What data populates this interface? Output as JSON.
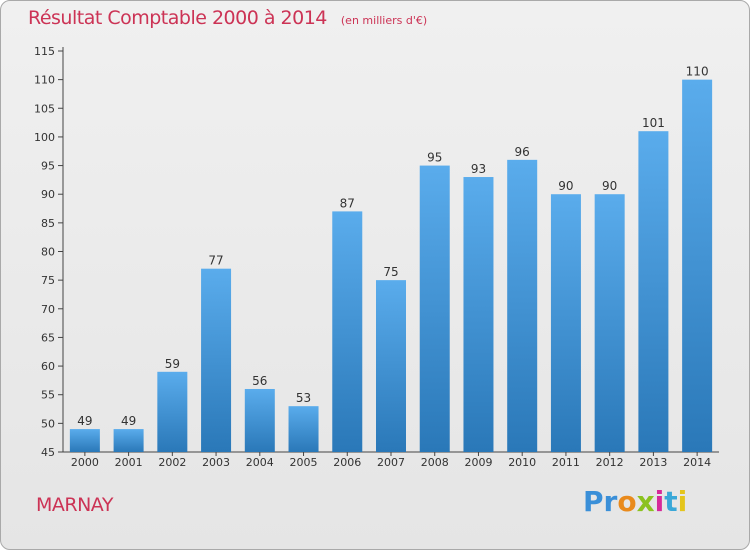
{
  "chart_data": {
    "type": "bar",
    "title": "Résultat Comptable 2000 à 2014",
    "subtitle": "(en milliers d'€)",
    "categories": [
      "2000",
      "2001",
      "2002",
      "2003",
      "2004",
      "2005",
      "2006",
      "2007",
      "2008",
      "2009",
      "2010",
      "2011",
      "2012",
      "2013",
      "2014"
    ],
    "values": [
      49,
      49,
      59,
      77,
      56,
      53,
      87,
      75,
      95,
      93,
      96,
      90,
      90,
      101,
      110
    ],
    "ylim": [
      45,
      115
    ],
    "yticks": [
      45,
      50,
      55,
      60,
      65,
      70,
      75,
      80,
      85,
      90,
      95,
      100,
      105,
      110,
      115
    ],
    "xlabel": "",
    "ylabel": "",
    "grid": false,
    "bar_color_top": "#5aacec",
    "bar_color_bottom": "#2a78b8"
  },
  "town": "MARNAY",
  "logo": {
    "letters": [
      {
        "ch": "P",
        "color": "#3a8fd8"
      },
      {
        "ch": "r",
        "color": "#3a8fd8"
      },
      {
        "ch": "o",
        "color": "#e98a1c"
      },
      {
        "ch": "x",
        "color": "#8bc21f"
      },
      {
        "ch": "i",
        "color": "#d6299a"
      },
      {
        "ch": "t",
        "color": "#3aa8d8"
      },
      {
        "ch": "i",
        "color": "#e4c51c"
      }
    ]
  }
}
